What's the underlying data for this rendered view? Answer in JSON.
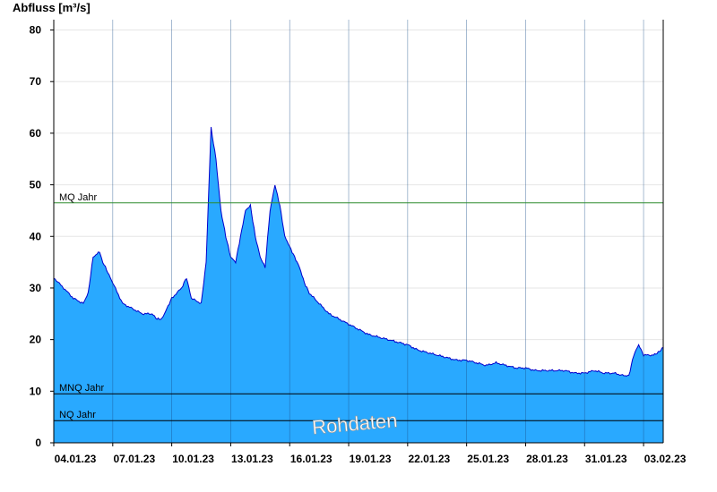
{
  "chart_data": {
    "type": "area",
    "ylabel": "Abfluss [m³/s]",
    "watermark": "Rohdaten",
    "ylim": [
      0,
      82
    ],
    "yticks": [
      0,
      10,
      20,
      30,
      40,
      50,
      60,
      70,
      80
    ],
    "xlim": [
      "04.01.23",
      "03.02.23"
    ],
    "x_tick_labels": [
      "04.01.23",
      "07.01.23",
      "10.01.23",
      "13.01.23",
      "16.01.23",
      "19.01.23",
      "22.01.23",
      "25.01.23",
      "28.01.23",
      "31.01.23",
      "03.02.23"
    ],
    "grid": {
      "horizontal": true,
      "vertical": true
    },
    "colors": {
      "area_fill": "#29a9ff",
      "line": "#0000cc",
      "mq_line": "#2e8b2e",
      "mnq_line": "#000000",
      "nq_line": "#000000"
    },
    "reference_lines": [
      {
        "label": "MQ Jahr",
        "value": 46.5
      },
      {
        "label": "MNQ Jahr",
        "value": 9.5
      },
      {
        "label": "NQ Jahr",
        "value": 4.3
      }
    ],
    "series": [
      {
        "x": [
          "04.01.23 00:00",
          "04.01.23 12:00",
          "05.01.23 00:00",
          "05.01.23 12:00",
          "05.01.23 18:00",
          "06.01.23 00:00",
          "06.01.23 08:00",
          "06.01.23 12:00",
          "06.01.23 18:00",
          "07.01.23 00:00",
          "07.01.23 12:00",
          "08.01.23 00:00",
          "08.01.23 12:00",
          "09.01.23 00:00",
          "09.01.23 06:00",
          "09.01.23 12:00",
          "09.01.23 18:00",
          "10.01.23 00:00",
          "10.01.23 12:00",
          "10.01.23 18:00",
          "11.01.23 00:00",
          "11.01.23 12:00",
          "11.01.23 18:00",
          "12.01.23 00:00",
          "12.01.23 06:00",
          "12.01.23 12:00",
          "12.01.23 18:00",
          "13.01.23 00:00",
          "13.01.23 06:00",
          "13.01.23 12:00",
          "13.01.23 18:00",
          "14.01.23 00:00",
          "14.01.23 06:00",
          "14.01.23 12:00",
          "14.01.23 18:00",
          "15.01.23 00:00",
          "15.01.23 06:00",
          "15.01.23 12:00",
          "15.01.23 18:00",
          "16.01.23 00:00",
          "16.01.23 06:00",
          "16.01.23 12:00",
          "16.01.23 18:00",
          "17.01.23 00:00",
          "17.01.23 12:00",
          "18.01.23 00:00",
          "18.01.23 12:00",
          "19.01.23 00:00",
          "19.01.23 12:00",
          "20.01.23 00:00",
          "20.01.23 12:00",
          "21.01.23 00:00",
          "21.01.23 12:00",
          "22.01.23 00:00",
          "22.01.23 12:00",
          "23.01.23 00:00",
          "23.01.23 12:00",
          "24.01.23 00:00",
          "24.01.23 12:00",
          "25.01.23 00:00",
          "25.01.23 12:00",
          "26.01.23 00:00",
          "26.01.23 12:00",
          "27.01.23 00:00",
          "27.01.23 12:00",
          "28.01.23 00:00",
          "28.01.23 12:00",
          "29.01.23 00:00",
          "29.01.23 12:00",
          "30.01.23 00:00",
          "30.01.23 12:00",
          "31.01.23 00:00",
          "31.01.23 12:00",
          "01.02.23 00:00",
          "01.02.23 12:00",
          "02.02.23 00:00",
          "02.02.23 06:00",
          "02.02.23 12:00",
          "02.02.23 18:00",
          "03.02.23 00:00",
          "03.02.23 12:00",
          "03.02.23 18:00",
          "04.02.23 00:00"
        ],
        "values": [
          32,
          30,
          28,
          27,
          29,
          36,
          37,
          35,
          33,
          31,
          27,
          26,
          25,
          25,
          24,
          24,
          26,
          28,
          30,
          32,
          28,
          27,
          35,
          61,
          55,
          45,
          40,
          36,
          35,
          40,
          45,
          46,
          40,
          36,
          34,
          45,
          50,
          46,
          40,
          38,
          36,
          34,
          31,
          29,
          27,
          25,
          24,
          23,
          22,
          21,
          20.5,
          20,
          19.5,
          19,
          18,
          17.5,
          17,
          16.5,
          16,
          16,
          15.5,
          15,
          15.5,
          15,
          14.5,
          14.5,
          14,
          14,
          14,
          14,
          13.5,
          13.5,
          14,
          13.5,
          13.5,
          13,
          13,
          17,
          19,
          17,
          17,
          17.5,
          18.5
        ]
      }
    ]
  }
}
